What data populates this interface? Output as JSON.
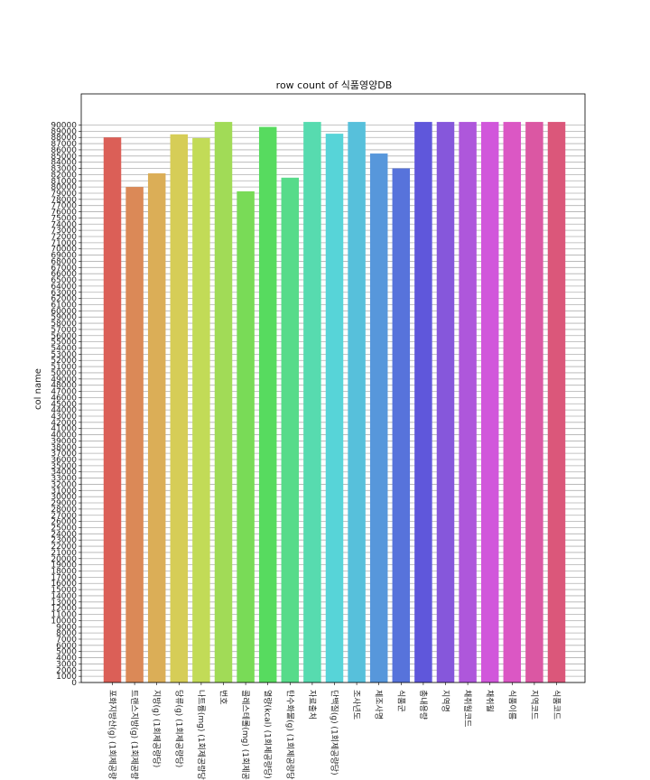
{
  "chart_data": {
    "type": "bar",
    "title": "row count of 식품영양DB",
    "xlabel": "",
    "ylabel": "col name",
    "ylim": [
      0,
      90000
    ],
    "ytick_step": 1000,
    "grid": true,
    "categories": [
      "포화지방산(g) (1회제공량당)",
      "트랜스지방(g) (1회제공량당)",
      "지방(g) (1회제공량당)",
      "당류(g) (1회제공량당)",
      "나트륨(mg) (1회제공량당)",
      "번호",
      "콜레스테롤(mg) (1회제공량당)",
      "열량(kcal) (1회제공량당)",
      "탄수화물(g) (1회제공량당)",
      "자료출처",
      "단백질(g) (1회제공량당)",
      "조사년도",
      "제조사명",
      "식품군",
      "총내용량",
      "지역명",
      "채취월코드",
      "채취월",
      "식품이름",
      "지역코드",
      "식품코드"
    ],
    "values": [
      88000,
      80000,
      82200,
      88500,
      87900,
      90500,
      79300,
      89700,
      81500,
      90500,
      88600,
      90500,
      85400,
      83000,
      90500,
      90500,
      90500,
      90500,
      90500,
      90500,
      90500
    ],
    "colors": [
      "#db5f57",
      "#db8957",
      "#dbae57",
      "#d6cd57",
      "#c2db57",
      "#a1db57",
      "#79db57",
      "#57db5f",
      "#57db8a",
      "#57dbaf",
      "#57d4d8",
      "#57c0db",
      "#5797db",
      "#5773db",
      "#5f57db",
      "#8657db",
      "#ae57db",
      "#d157db",
      "#db57c4",
      "#db57a3",
      "#db577a"
    ]
  }
}
